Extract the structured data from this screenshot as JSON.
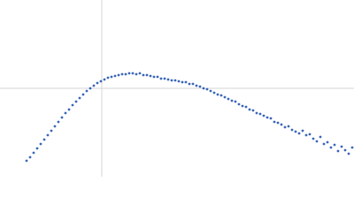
{
  "chart_data": {
    "type": "scatter",
    "color": "#3b66b8",
    "xlim": [
      0,
      4
    ],
    "ylim": [
      0,
      2
    ],
    "reference_lines": {
      "x": 1.15,
      "y": 1.0
    },
    "x": [
      0.3,
      0.34,
      0.38,
      0.42,
      0.46,
      0.5,
      0.54,
      0.58,
      0.62,
      0.66,
      0.7,
      0.74,
      0.78,
      0.82,
      0.86,
      0.9,
      0.94,
      0.98,
      1.02,
      1.06,
      1.1,
      1.14,
      1.18,
      1.22,
      1.26,
      1.3,
      1.34,
      1.38,
      1.42,
      1.46,
      1.5,
      1.54,
      1.58,
      1.62,
      1.66,
      1.7,
      1.74,
      1.78,
      1.82,
      1.86,
      1.9,
      1.94,
      1.98,
      2.02,
      2.06,
      2.1,
      2.14,
      2.18,
      2.22,
      2.26,
      2.3,
      2.34,
      2.38,
      2.42,
      2.46,
      2.5,
      2.54,
      2.58,
      2.62,
      2.66,
      2.7,
      2.74,
      2.78,
      2.82,
      2.86,
      2.9,
      2.94,
      2.98,
      3.02,
      3.06,
      3.1,
      3.14,
      3.18,
      3.22,
      3.26,
      3.3,
      3.34,
      3.38,
      3.42,
      3.46,
      3.5,
      3.54,
      3.58,
      3.62,
      3.66,
      3.7,
      3.74,
      3.78,
      3.82,
      3.86,
      3.9,
      3.94,
      3.98
    ],
    "values": [
      0.18,
      0.22,
      0.27,
      0.32,
      0.37,
      0.42,
      0.47,
      0.52,
      0.57,
      0.62,
      0.67,
      0.72,
      0.76,
      0.81,
      0.85,
      0.89,
      0.93,
      0.97,
      1.0,
      1.03,
      1.06,
      1.08,
      1.1,
      1.12,
      1.13,
      1.14,
      1.15,
      1.16,
      1.16,
      1.17,
      1.17,
      1.16,
      1.17,
      1.15,
      1.15,
      1.14,
      1.13,
      1.13,
      1.11,
      1.11,
      1.1,
      1.09,
      1.09,
      1.08,
      1.07,
      1.07,
      1.05,
      1.05,
      1.03,
      1.02,
      1.0,
      0.99,
      0.97,
      0.95,
      0.93,
      0.92,
      0.9,
      0.88,
      0.86,
      0.85,
      0.82,
      0.8,
      0.79,
      0.76,
      0.75,
      0.72,
      0.71,
      0.69,
      0.67,
      0.66,
      0.62,
      0.61,
      0.59,
      0.56,
      0.57,
      0.53,
      0.51,
      0.49,
      0.52,
      0.47,
      0.48,
      0.43,
      0.4,
      0.45,
      0.37,
      0.39,
      0.33,
      0.36,
      0.29,
      0.34,
      0.3,
      0.26,
      0.33
    ]
  }
}
